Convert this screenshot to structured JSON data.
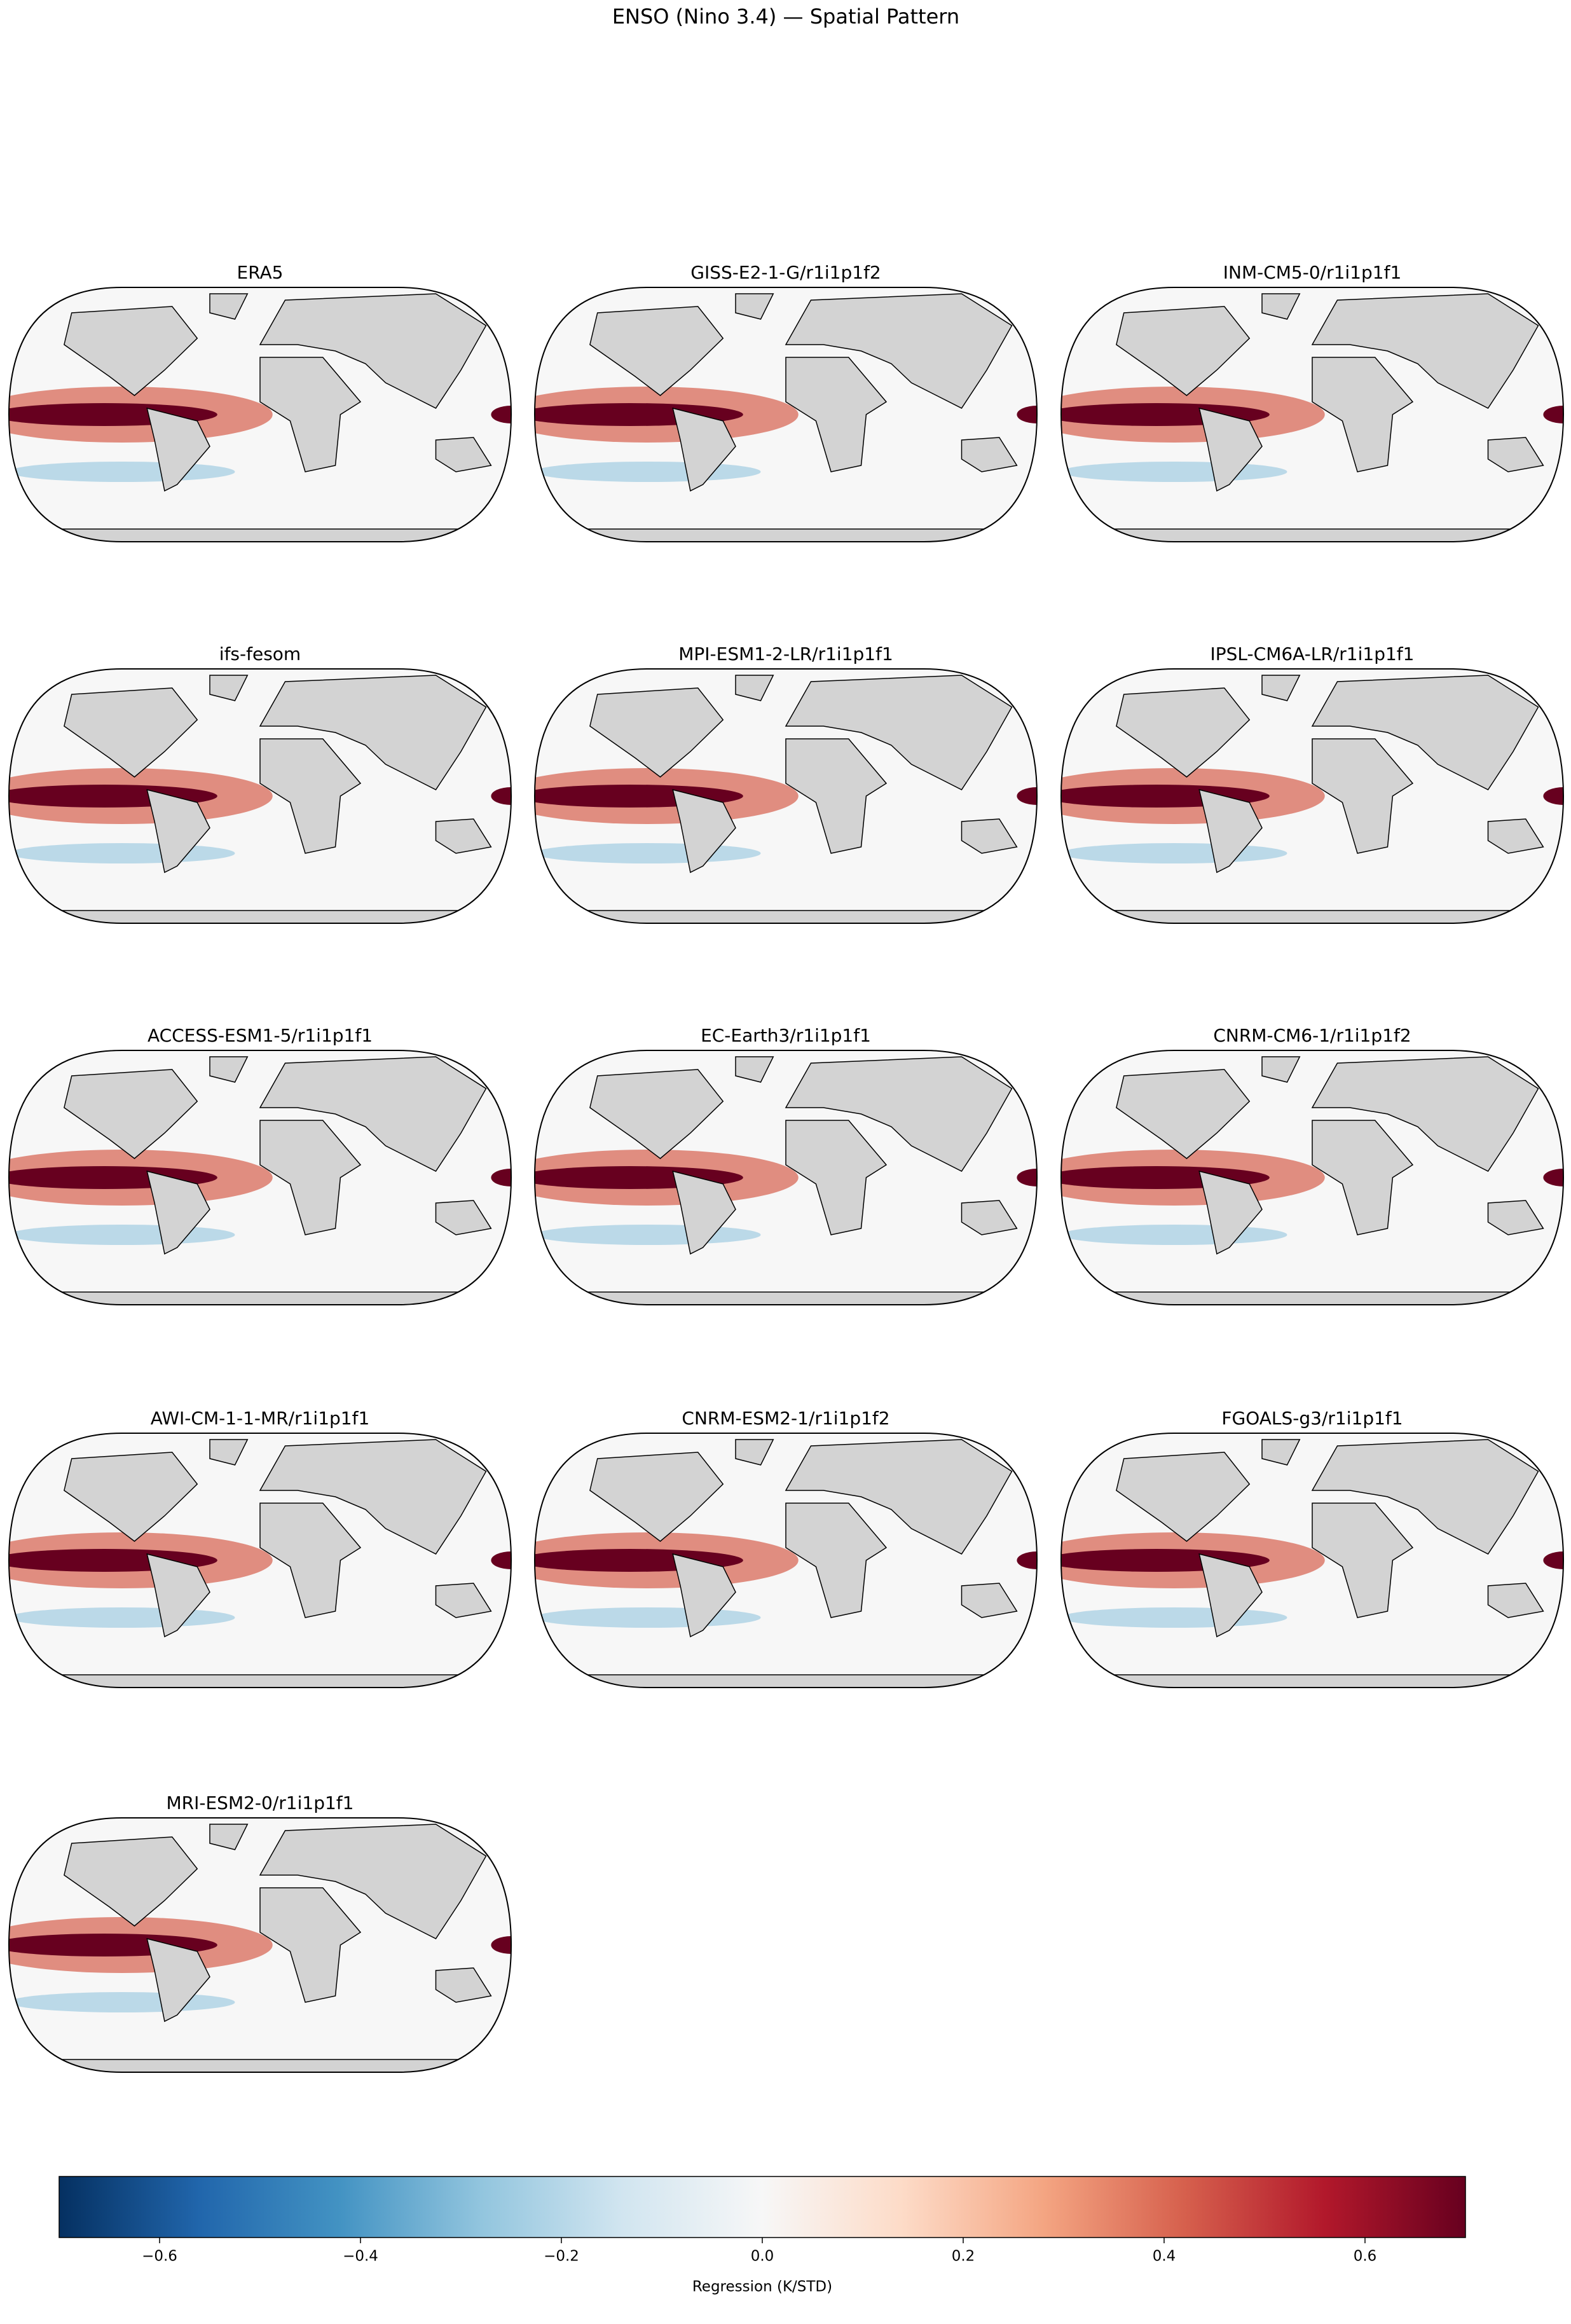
{
  "chart_data": {
    "type": "map-grid",
    "title": "ENSO (Nino 3.4) — Spatial Pattern",
    "panels": [
      "ERA5",
      "GISS-E2-1-G/r1i1p1f2",
      "INM-CM5-0/r1i1p1f1",
      "ifs-fesom",
      "MPI-ESM1-2-LR/r1i1p1f1",
      "IPSL-CM6A-LR/r1i1p1f1",
      "ACCESS-ESM1-5/r1i1p1f1",
      "EC-Earth3/r1i1p1f1",
      "CNRM-CM6-1/r1i1p1f2",
      "AWI-CM-1-1-MR/r1i1p1f1",
      "CNRM-ESM2-1/r1i1p1f2",
      "FGOALS-g3/r1i1p1f1",
      "MRI-ESM2-0/r1i1p1f1"
    ],
    "colorbar": {
      "label": "Regression (K/STD)",
      "vlim": [
        -0.7,
        0.7
      ],
      "ticks": [
        {
          "value": -0.6,
          "label": "−0.6"
        },
        {
          "value": -0.4,
          "label": "−0.4"
        },
        {
          "value": -0.2,
          "label": "−0.2"
        },
        {
          "value": 0,
          "label": "0.0"
        },
        0.2,
        0.4,
        0.6
      ],
      "colormap": [
        "#053061",
        "#2166ac",
        "#4393c3",
        "#92c5de",
        "#d1e5f0",
        "#f7f7f7",
        "#fddbc7",
        "#f4a582",
        "#d6604d",
        "#b2182b",
        "#67001f"
      ]
    }
  }
}
